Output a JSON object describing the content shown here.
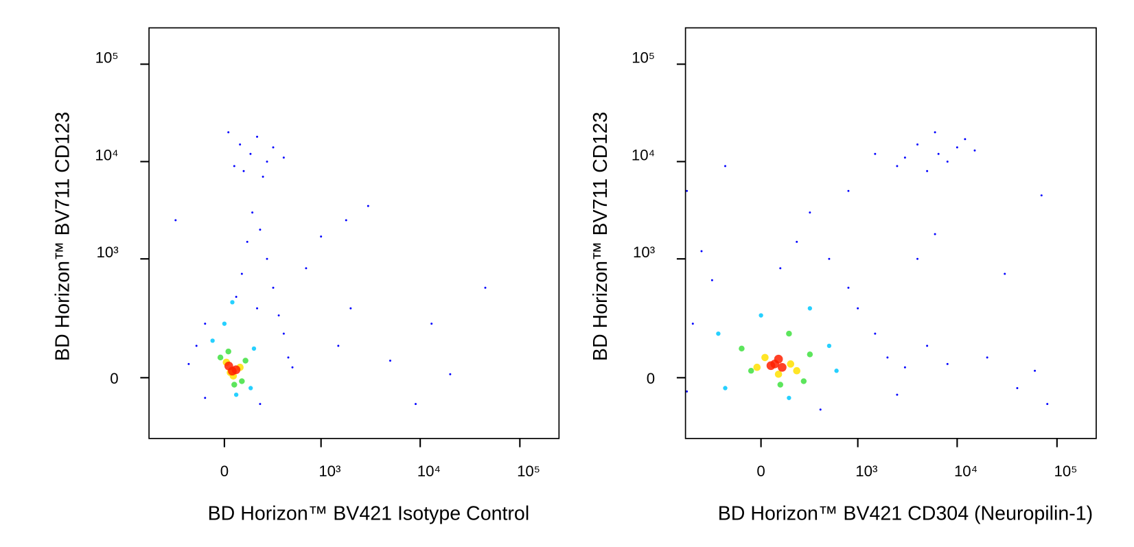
{
  "chart_data": [
    {
      "type": "scatter",
      "x_label": "BD Horizon™ BV421 Isotype Control",
      "y_label": "BD Horizon™ BV711 CD123",
      "xscale": "biexponential",
      "yscale": "biexponential",
      "xlim": [
        -600,
        247000
      ],
      "ylim": [
        -240,
        236000
      ],
      "xticks": [
        0,
        {
          "value": 1000,
          "label": "10³"
        },
        {
          "value": 10000,
          "label": "10⁴"
        },
        {
          "value": 100000,
          "label": "10⁵"
        }
      ],
      "yticks": [
        0,
        {
          "value": 1000,
          "label": "10³"
        },
        {
          "value": 10000,
          "label": "10⁴"
        },
        {
          "value": 100000,
          "label": "10⁵"
        }
      ],
      "series": [
        {
          "color": "#0000ff",
          "x": [
            139,
            80,
            250,
            50,
            300,
            180,
            100,
            400,
            20,
            220,
            150,
            200,
            120,
            250,
            90,
            300,
            60,
            180,
            -100,
            350,
            -150,
            400,
            -200,
            450,
            -100,
            200,
            500,
            1000,
            1800,
            3000,
            2000,
            1500,
            5000,
            13000,
            9000,
            20000,
            45000,
            -300,
            700
          ],
          "y": [
            12000,
            15000,
            10000,
            9000,
            14000,
            18000,
            8000,
            11000,
            20000,
            7000,
            3000,
            2000,
            1500,
            1000,
            700,
            500,
            400,
            300,
            200,
            250,
            100,
            150,
            40,
            60,
            -60,
            -80,
            30,
            1700,
            2500,
            3500,
            300,
            100,
            50,
            200,
            -80,
            10,
            500,
            2500,
            800
          ]
        },
        {
          "color": "#00c8ff",
          "x": [
            -60,
            160,
            60,
            0,
            140,
            40
          ],
          "y": [
            120,
            90,
            -50,
            200,
            -30,
            350
          ]
        },
        {
          "color": "#40e040",
          "x": [
            -20,
            110,
            50,
            20,
            90
          ],
          "y": [
            60,
            50,
            -20,
            80,
            -10
          ]
        },
        {
          "color": "#ffe000",
          "x": [
            10,
            80,
            45,
            30
          ],
          "y": [
            45,
            30,
            5,
            15
          ]
        },
        {
          "color": "#ff2000",
          "x": [
            22,
            59,
            40
          ],
          "y": [
            34,
            23,
            19
          ]
        }
      ]
    },
    {
      "type": "scatter",
      "x_label": "BD Horizon™ BV421 CD304 (Neuropilin-1)",
      "y_label": "BD Horizon™ BV711 CD123",
      "xscale": "biexponential",
      "yscale": "biexponential",
      "xlim": [
        -600,
        247000
      ],
      "ylim": [
        -240,
        236000
      ],
      "xticks": [
        0,
        {
          "value": 1000,
          "label": "10³"
        },
        {
          "value": 10000,
          "label": "10⁴"
        },
        {
          "value": 100000,
          "label": "10⁵"
        }
      ],
      "yticks": [
        0,
        {
          "value": 1000,
          "label": "10³"
        },
        {
          "value": 10000,
          "label": "10⁴"
        },
        {
          "value": 100000,
          "label": "10⁵"
        }
      ],
      "series": [
        {
          "color": "#0000ff",
          "x": [
            6500,
            4000,
            8000,
            3000,
            10000,
            5000,
            12000,
            6000,
            15000,
            2500,
            300,
            200,
            500,
            100,
            800,
            -300,
            1000,
            -500,
            1500,
            2000,
            3000,
            -580,
            400,
            2500,
            5000,
            8000,
            20000,
            40000,
            80000,
            60000,
            800,
            1500,
            -200,
            -580,
            30000,
            70000,
            4000,
            6000,
            -400
          ],
          "y": [
            12000,
            15000,
            10000,
            11000,
            14000,
            8000,
            17000,
            20000,
            13000,
            9000,
            3000,
            1500,
            1000,
            800,
            500,
            600,
            300,
            200,
            150,
            60,
            30,
            -40,
            -100,
            -50,
            100,
            40,
            60,
            -30,
            -80,
            20,
            5000,
            12000,
            9000,
            5000,
            700,
            4500,
            1000,
            1800,
            1200
          ]
        },
        {
          "color": "#00c8ff",
          "x": [
            -250,
            500,
            150,
            -200,
            600,
            300,
            0
          ],
          "y": [
            150,
            100,
            -60,
            -30,
            20,
            300,
            250
          ]
        },
        {
          "color": "#40e040",
          "x": [
            -100,
            300,
            100,
            -50,
            250,
            150
          ],
          "y": [
            90,
            70,
            -20,
            20,
            -10,
            150
          ]
        },
        {
          "color": "#ffe000",
          "x": [
            20,
            160,
            90,
            -20,
            200
          ],
          "y": [
            60,
            40,
            10,
            30,
            20
          ]
        },
        {
          "color": "#ff2000",
          "x": [
            70,
            110,
            90,
            50
          ],
          "y": [
            40,
            30,
            55,
            35
          ]
        }
      ]
    }
  ]
}
